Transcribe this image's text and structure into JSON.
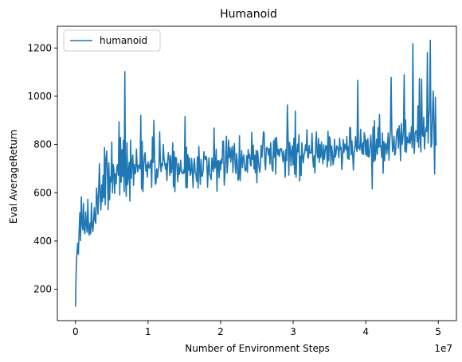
{
  "chart_data": {
    "type": "line",
    "title": "Humanoid",
    "xlabel": "Number of Environment Steps",
    "ylabel": "Eval AverageReturn",
    "x_offset_label": "1e7",
    "xlim": [
      -2500000,
      52500000
    ],
    "ylim": [
      70,
      1290
    ],
    "x_ticks": [
      0,
      10000000,
      20000000,
      30000000,
      40000000,
      50000000
    ],
    "x_tick_labels": [
      "0",
      "1",
      "2",
      "3",
      "4",
      "5"
    ],
    "y_ticks": [
      200,
      400,
      600,
      800,
      1000,
      1200
    ],
    "y_tick_labels": [
      "200",
      "400",
      "600",
      "800",
      "1000",
      "1200"
    ],
    "grid": false,
    "legend_position": "upper-left",
    "series": [
      {
        "name": "humanoid",
        "color": "#1f77b4",
        "x_start": 0,
        "x_step": 100000,
        "values": [
          128,
          285,
          352,
          391,
          345,
          441,
          518,
          402,
          583,
          473,
          447,
          556,
          445,
          430,
          521,
          473,
          436,
          573,
          447,
          424,
          475,
          430,
          558,
          461,
          440,
          488,
          539,
          483,
          473,
          620,
          580,
          511,
          619,
          720,
          581,
          529,
          633,
          563,
          672,
          579,
          787,
          550,
          739,
          773,
          683,
          530,
          724,
          571,
          666,
          644,
          810,
          600,
          717,
          694,
          597,
          678,
          637,
          705,
          717,
          672,
          894,
          591,
          829,
          644,
          778,
          668,
          818,
          604,
          1102,
          648,
          585,
          808,
          634,
          680,
          726,
          565,
          818,
          660,
          729,
          756,
          630,
          718,
          679,
          684,
          781,
          711,
          687,
          714,
          716,
          699,
          921,
          615,
          813,
          605,
          707,
          753,
          766,
          691,
          716,
          665,
          728,
          706,
          702,
          724,
          735,
          623,
          831,
          726,
          900,
          768,
          635,
          642,
          699,
          662,
          693,
          707,
          852,
          728,
          687,
          721,
          712,
          800,
          744,
          723,
          698,
          721,
          650,
          733,
          766,
          740,
          671,
          753,
          683,
          704,
          807,
          625,
          771,
          605,
          747,
          744,
          696,
          645,
          721,
          676,
          689,
          735,
          689,
          681,
          678,
          694,
          682,
          915,
          622,
          788,
          620,
          757,
          693,
          745,
          672,
          682,
          742,
          690,
          621,
          718,
          742,
          681,
          681,
          647,
          749,
          619,
          792,
          707,
          635,
          738,
          668,
          670,
          699,
          770,
          746,
          737,
          751,
          738,
          623,
          700,
          745,
          675,
          668,
          655,
          744,
          705,
          688,
          868,
          701,
          713,
          781,
          606,
          730,
          734,
          662,
          732,
          695,
          740,
          722,
          814,
          814,
          631,
          676,
          756,
          834,
          682,
          725,
          818,
          746,
          786,
          727,
          770,
          793,
          684,
          768,
          804,
          719,
          680,
          763,
          729,
          652,
          659,
          836,
          650,
          724,
          775,
          704,
          744,
          757,
          708,
          690,
          694,
          753,
          685,
          779,
          745,
          759,
          718,
          710,
          850,
          738,
          797,
          698,
          755,
          683,
          776,
          642,
          773,
          736,
          703,
          685,
          720,
          797,
          747,
          790,
          852,
          847,
          722,
          695,
          784,
          788,
          777,
          756,
          783,
          719,
          808,
          744,
          700,
          689,
          815,
          747,
          825,
          677,
          830,
          782,
          757,
          781,
          750,
          773,
          784,
          781,
          757,
          729,
          773,
          744,
          664,
          780,
          734,
          964,
          832,
          673,
          809,
          786,
          712,
          771,
          795,
          715,
          826,
          677,
          938,
          664,
          761,
          801,
          769,
          841,
          649,
          752,
          672,
          807,
          754,
          724,
          758,
          767,
          799,
          774,
          861,
          751,
          743,
          796,
          764,
          766,
          765,
          847,
          742,
          706,
          753,
          682,
          799,
          852,
          759,
          745,
          825,
          726,
          799,
          746,
          810,
          758,
          720,
          799,
          739,
          772,
          796,
          791,
          707,
          855,
          733,
          832,
          822,
          712,
          795,
          766,
          717,
          737,
          822,
          747,
          760,
          795,
          790,
          779,
          745,
          826,
          779,
          788,
          696,
          740,
          821,
          767,
          802,
          786,
          777,
          833,
          741,
          791,
          738,
          870,
          870,
          757,
          815,
          761,
          694,
          767,
          789,
          833,
          787,
          771,
          1066,
          784,
          795,
          777,
          863,
          792,
          761,
          807,
          759,
          849,
          831,
          758,
          818,
          751,
          824,
          748,
          754,
          793,
          839,
          781,
          616,
          872,
          729,
          899,
          734,
          772,
          822,
          759,
          870,
          788,
          925,
          791,
          794,
          747,
          848,
          681,
          813,
          733,
          804,
          803,
          760,
          789,
          848,
          735,
          817,
          854,
          1078,
          852,
          770,
          792,
          834,
          756,
          762,
          823,
          855,
          865,
          785,
          878,
          832,
          733,
          887,
          800,
          818,
          858,
          1089,
          771,
          902,
          768,
          831,
          807,
          808,
          849,
          803,
          825,
          873,
          787,
          1218,
          815,
          763,
          846,
          856,
          855,
          810,
          960,
          789,
          1074,
          835,
          769,
          1071,
          841,
          834,
          913,
          781,
          836,
          870,
          854,
          1181,
          806,
          911,
          956,
          1232,
          789,
          802,
          923,
          1022,
          860,
          678,
          995,
          795
        ]
      }
    ]
  }
}
